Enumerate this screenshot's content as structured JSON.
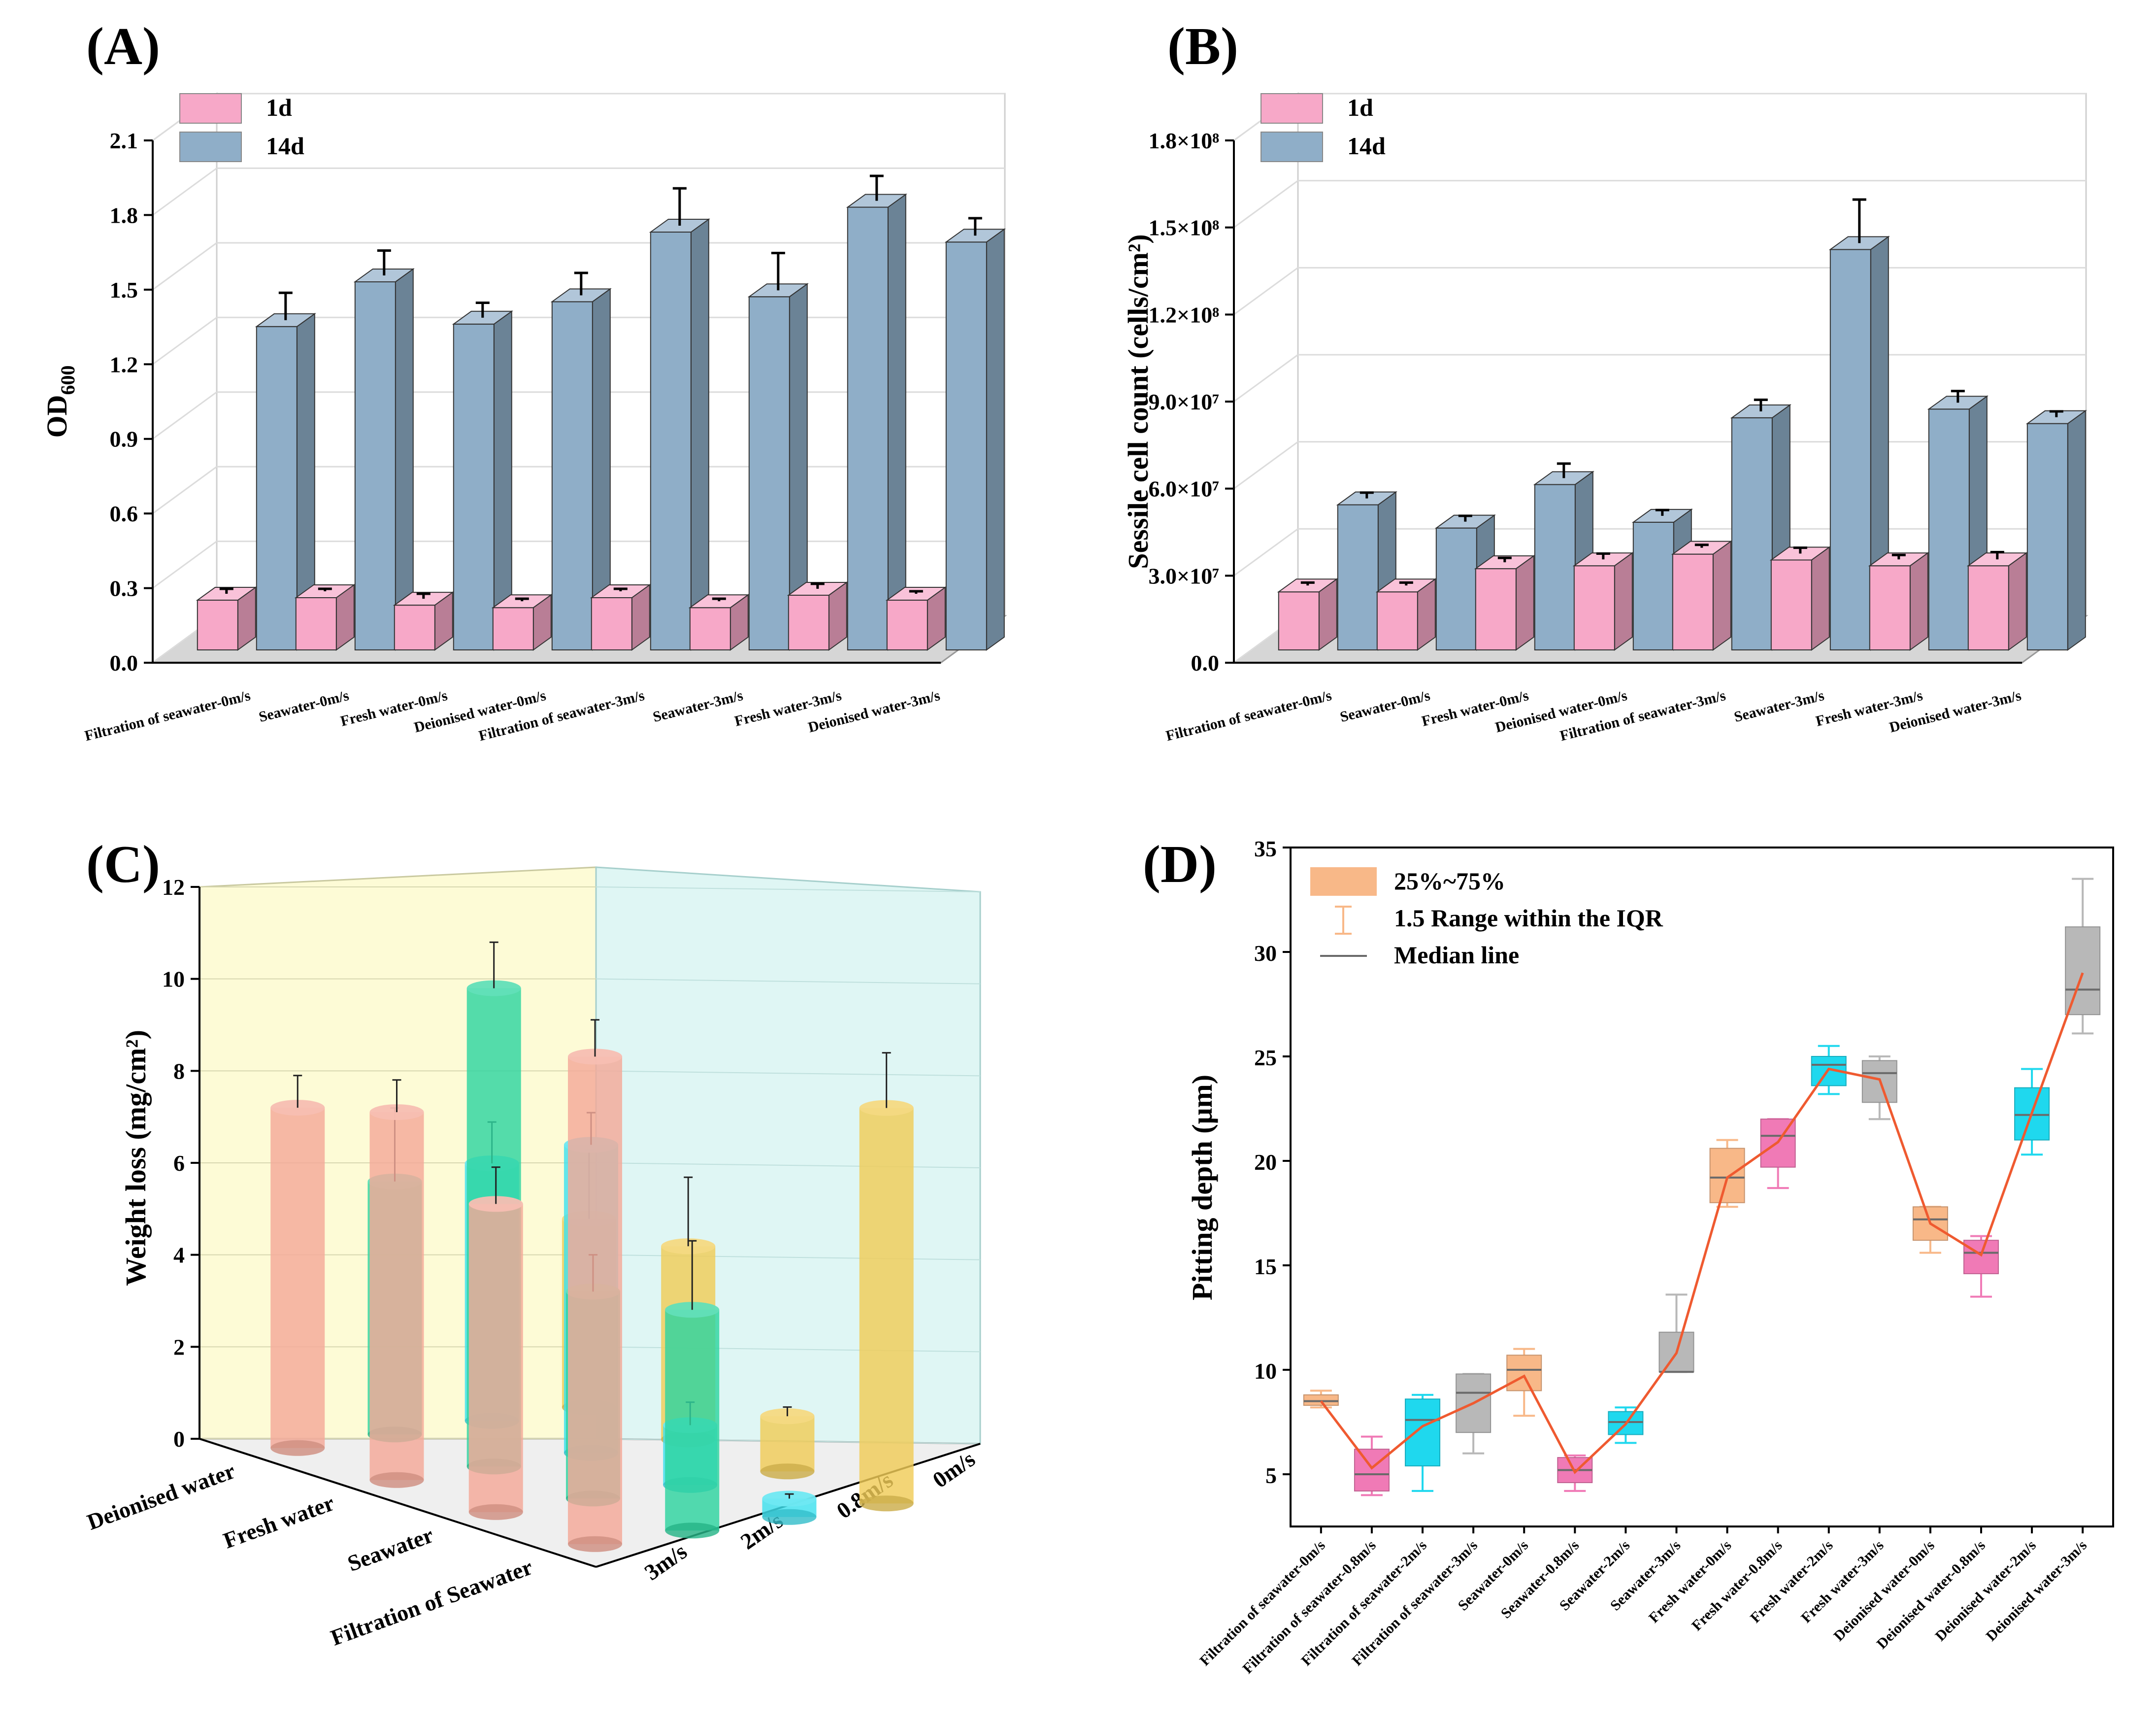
{
  "chart_data": [
    {
      "panel": "(A)",
      "type": "bar",
      "ylabel": "OD",
      "ylabel_sub": "600",
      "ylim": [
        0,
        2.1
      ],
      "yticks": [
        "0.0",
        "0.3",
        "0.6",
        "0.9",
        "1.2",
        "1.5",
        "1.8",
        "2.1"
      ],
      "categories": [
        "Filtration of seawater-0m/s",
        "Seawater-0m/s",
        "Fresh water-0m/s",
        "Deionised water-0m/s",
        "Filtration of seawater-3m/s",
        "Seawater-3m/s",
        "Fresh water-3m/s",
        "Deionised water-3m/s"
      ],
      "series": [
        {
          "name": "1d",
          "color": "#f7a8c8",
          "values": [
            0.2,
            0.21,
            0.18,
            0.17,
            0.21,
            0.17,
            0.22,
            0.2
          ],
          "errors": [
            0.02,
            0.01,
            0.02,
            0.01,
            0.01,
            0.01,
            0.02,
            0.01
          ]
        },
        {
          "name": "14d",
          "color": "#8faec8",
          "values": [
            1.3,
            1.48,
            1.31,
            1.4,
            1.68,
            1.42,
            1.78,
            1.64
          ],
          "errors": [
            0.11,
            0.1,
            0.06,
            0.09,
            0.15,
            0.15,
            0.1,
            0.07
          ]
        }
      ],
      "legend": "top-left"
    },
    {
      "panel": "(B)",
      "type": "bar",
      "ylabel": "Sessile cell count (cells/cm²)",
      "ylim": [
        0,
        180000000
      ],
      "yticks": [
        "0.0",
        "3.0×10⁷",
        "6.0×10⁷",
        "9.0×10⁷",
        "1.2×10⁸",
        "1.5×10⁸",
        "1.8×10⁸"
      ],
      "categories": [
        "Filtration of seawater-0m/s",
        "Seawater-0m/s",
        "Fresh water-0m/s",
        "Deionised water-0m/s",
        "Filtration of seawater-3m/s",
        "Seawater-3m/s",
        "Fresh water-3m/s",
        "Deionised water-3m/s"
      ],
      "series": [
        {
          "name": "1d",
          "color": "#f7a8c8",
          "values": [
            20000000,
            20000000,
            28000000,
            29000000,
            33000000,
            31000000,
            29000000,
            29000000
          ],
          "errors": [
            1000000,
            1000000,
            1500000,
            2000000,
            1000000,
            2000000,
            1500000,
            2500000
          ]
        },
        {
          "name": "14d",
          "color": "#8faec8",
          "values": [
            50000000,
            42000000,
            57000000,
            44000000,
            80000000,
            138000000,
            83000000,
            78000000
          ],
          "errors": [
            2000000,
            2000000,
            5000000,
            2000000,
            4000000,
            15000000,
            4000000,
            2000000
          ]
        }
      ],
      "legend": "top-left"
    },
    {
      "panel": "(C)",
      "type": "bar3d",
      "ylabel": "Weight loss (mg/cm²)",
      "ylim": [
        0,
        12
      ],
      "yticks": [
        "0",
        "2",
        "4",
        "6",
        "8",
        "10",
        "12"
      ],
      "rows": [
        "Deionised water",
        "Fresh water",
        "Seawater",
        "Filtration of Seawater"
      ],
      "cols": [
        "0m/s",
        "0.8m/s",
        "2m/s",
        "3m/s"
      ],
      "series": [
        {
          "name": "3m/s",
          "color": "#f4a898",
          "values": [
            7.4,
            8.0,
            6.7,
            10.6
          ],
          "errors": [
            0.7,
            0.7,
            0.8,
            0.8
          ]
        },
        {
          "name": "2m/s",
          "color": "#2ed4a0",
          "values": [
            5.5,
            10.4,
            4.5,
            4.8
          ],
          "errors": [
            1.6,
            1.0,
            0.8,
            1.5
          ]
        },
        {
          "name": "0.8m/s",
          "color": "#3fe0ee",
          "values": [
            5.6,
            6.7,
            1.3,
            0.4
          ],
          "errors": [
            0.9,
            0.7,
            0.5,
            0.1
          ]
        },
        {
          "name": "0m/s",
          "color": "#f0cc58",
          "values": [
            4.1,
            4.2,
            1.2,
            8.6
          ],
          "errors": [
            1.5,
            1.5,
            0.2,
            1.2
          ]
        }
      ]
    },
    {
      "panel": "(D)",
      "type": "box",
      "ylabel": "Pitting depth (μm)",
      "ylim": [
        2.5,
        35
      ],
      "yticks": [
        "5",
        "10",
        "15",
        "20",
        "25",
        "30",
        "35"
      ],
      "categories": [
        "Filtration of seawater-0m/s",
        "Filtration of seawater-0.8m/s",
        "Filtration of seawater-2m/s",
        "Filtration of seawater-3m/s",
        "Seawater-0m/s",
        "Seawater-0.8m/s",
        "Seawater-2m/s",
        "Seawater-3m/s",
        "Fresh water-0m/s",
        "Fresh water-0.8m/s",
        "Fresh water-2m/s",
        "Fresh water-3m/s",
        "Deionised water-0m/s",
        "Deionised water-0.8m/s",
        "Deionised water-2m/s",
        "Deionised water-3m/s"
      ],
      "boxes": [
        {
          "min": 8.2,
          "q1": 8.3,
          "median": 8.5,
          "q3": 8.8,
          "max": 9.0,
          "mean": 8.5
        },
        {
          "min": 4.0,
          "q1": 4.2,
          "median": 5.0,
          "q3": 6.2,
          "max": 6.8,
          "mean": 5.3
        },
        {
          "min": 4.2,
          "q1": 5.4,
          "median": 7.6,
          "q3": 8.6,
          "max": 8.8,
          "mean": 7.3
        },
        {
          "min": 6.0,
          "q1": 7.0,
          "median": 8.9,
          "q3": 9.8,
          "max": 9.8,
          "mean": 8.4
        },
        {
          "min": 7.8,
          "q1": 9.0,
          "median": 10.0,
          "q3": 10.7,
          "max": 11.0,
          "mean": 9.7
        },
        {
          "min": 4.2,
          "q1": 4.6,
          "median": 5.2,
          "q3": 5.8,
          "max": 5.9,
          "mean": 5.1
        },
        {
          "min": 6.5,
          "q1": 6.9,
          "median": 7.5,
          "q3": 8.0,
          "max": 8.2,
          "mean": 7.4
        },
        {
          "min": 9.9,
          "q1": 9.9,
          "median": 9.9,
          "q3": 11.8,
          "max": 13.6,
          "mean": 10.8
        },
        {
          "min": 17.8,
          "q1": 18.0,
          "median": 19.2,
          "q3": 20.6,
          "max": 21.0,
          "mean": 19.2
        },
        {
          "min": 18.7,
          "q1": 19.7,
          "median": 21.2,
          "q3": 22.0,
          "max": 22.0,
          "mean": 20.9
        },
        {
          "min": 23.2,
          "q1": 23.6,
          "median": 24.6,
          "q3": 25.0,
          "max": 25.5,
          "mean": 24.4
        },
        {
          "min": 22.0,
          "q1": 22.8,
          "median": 24.2,
          "q3": 24.8,
          "max": 25.0,
          "mean": 23.9
        },
        {
          "min": 15.6,
          "q1": 16.2,
          "median": 17.2,
          "q3": 17.8,
          "max": 17.8,
          "mean": 17.0
        },
        {
          "min": 13.5,
          "q1": 14.6,
          "median": 15.6,
          "q3": 16.2,
          "max": 16.4,
          "mean": 15.5
        },
        {
          "min": 20.3,
          "q1": 21.0,
          "median": 22.2,
          "q3": 23.5,
          "max": 24.4,
          "mean": 22.3
        },
        {
          "min": 26.1,
          "q1": 27.0,
          "median": 28.2,
          "q3": 31.2,
          "max": 33.5,
          "mean": 29.0
        }
      ],
      "box_colors": [
        "#f8b888",
        "#f07ab6",
        "#1fd8ee",
        "#b8b8b8"
      ],
      "line_color": "#ef5a30",
      "legend_items": [
        "25%~75%",
        "1.5 Range within the IQR",
        "Median line"
      ]
    }
  ]
}
